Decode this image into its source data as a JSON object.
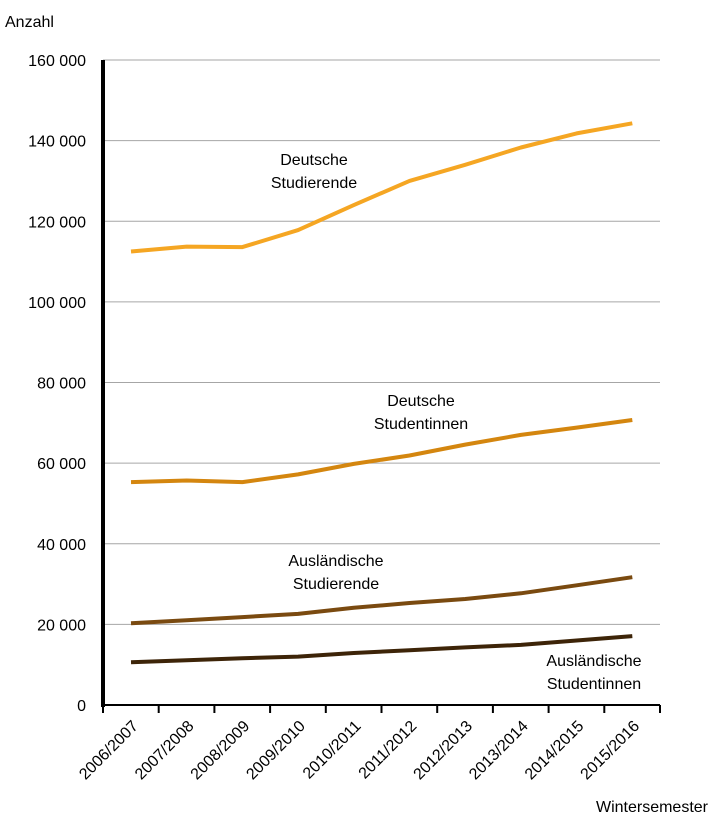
{
  "chart_data": {
    "type": "line",
    "ylabel": "Anzahl",
    "xlabel": "Wintersemester",
    "ylim": [
      0,
      160000
    ],
    "yticks": [
      0,
      20000,
      40000,
      60000,
      80000,
      100000,
      120000,
      140000,
      160000
    ],
    "ytick_labels": [
      "0",
      "20 000",
      "40 000",
      "60 000",
      "80 000",
      "100 000",
      "120 000",
      "140 000",
      "160 000"
    ],
    "grid": true,
    "categories": [
      "2006/2007",
      "2007/2008",
      "2008/2009",
      "2009/2010",
      "2010/2011",
      "2011/2012",
      "2012/2013",
      "2013/2014",
      "2014/2015",
      "2015/2016"
    ],
    "series": [
      {
        "name": "Deutsche Studierende",
        "label_lines": [
          "Deutsche",
          "Studierende"
        ],
        "color": "#f5a623",
        "values": [
          112500,
          113700,
          113600,
          117800,
          124000,
          130000,
          134000,
          138300,
          141800,
          144300
        ]
      },
      {
        "name": "Deutsche Studentinnen",
        "label_lines": [
          "Deutsche",
          "Studentinnen"
        ],
        "color": "#d4860f",
        "values": [
          55300,
          55700,
          55300,
          57200,
          59800,
          61900,
          64600,
          67000,
          68800,
          70700
        ]
      },
      {
        "name": "Ausländische Studierende",
        "label_lines": [
          "Ausländische",
          "Studierende"
        ],
        "color": "#7a4a10",
        "values": [
          20300,
          21000,
          21800,
          22600,
          24100,
          25300,
          26300,
          27700,
          29700,
          31700
        ]
      },
      {
        "name": "Ausländische Studentinnen",
        "label_lines": [
          "Ausländische",
          "Studentinnen"
        ],
        "color": "#3d2408",
        "values": [
          10600,
          11100,
          11600,
          12000,
          12900,
          13600,
          14300,
          14900,
          16000,
          17100
        ]
      }
    ]
  }
}
